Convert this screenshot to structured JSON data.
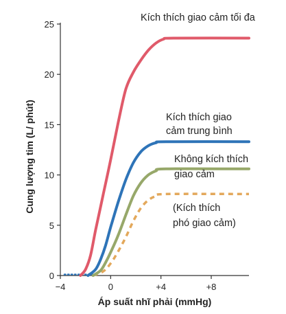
{
  "chart_data": {
    "type": "line",
    "title": "",
    "xlabel": "Áp suất nhĩ phải (mmHg)",
    "ylabel": "Cung lượng tim (L/ phút)",
    "xlim": [
      -4,
      11
    ],
    "ylim": [
      0,
      25
    ],
    "x_ticks": [
      -4,
      0,
      4,
      8
    ],
    "x_tick_labels": [
      "−4",
      "0",
      "+4",
      "+8"
    ],
    "y_ticks": [
      0,
      5,
      10,
      15,
      20,
      25
    ],
    "y_tick_labels": [
      "0",
      "5",
      "10",
      "15",
      "20",
      "25"
    ],
    "grid": false,
    "legend": "none",
    "series": [
      {
        "label_lines": [
          "Kích thích giao cảm tối đa"
        ],
        "color": "#e05a6a",
        "style": "solid",
        "points": [
          [
            -2.4,
            0
          ],
          [
            -2,
            0.6
          ],
          [
            -1.6,
            2
          ],
          [
            -1.2,
            4.5
          ],
          [
            -0.6,
            8
          ],
          [
            0,
            11.5
          ],
          [
            0.6,
            15.2
          ],
          [
            1.2,
            18.5
          ],
          [
            1.8,
            20.2
          ],
          [
            2.4,
            21.4
          ],
          [
            3,
            22.4
          ],
          [
            3.6,
            23.1
          ],
          [
            4.2,
            23.5
          ],
          [
            5,
            23.6
          ],
          [
            11,
            23.6
          ]
        ]
      },
      {
        "label_lines": [
          "Kích thích giao",
          "cảm trung bình"
        ],
        "color": "#2e74b8",
        "style": "solid",
        "points": [
          [
            -1.8,
            0
          ],
          [
            -1.2,
            0.6
          ],
          [
            -0.8,
            1.6
          ],
          [
            -0.4,
            3
          ],
          [
            0,
            4.8
          ],
          [
            0.6,
            7.3
          ],
          [
            1.2,
            9.5
          ],
          [
            1.8,
            11.2
          ],
          [
            2.4,
            12.3
          ],
          [
            3,
            12.9
          ],
          [
            3.6,
            13.2
          ],
          [
            4.4,
            13.3
          ],
          [
            11,
            13.3
          ]
        ]
      },
      {
        "label_lines": [
          "Không kích thích",
          "giao cảm"
        ],
        "color": "#97a86a",
        "style": "solid",
        "points": [
          [
            -1.4,
            0
          ],
          [
            -0.8,
            0.5
          ],
          [
            -0.4,
            1.3
          ],
          [
            0,
            2.3
          ],
          [
            0.6,
            4
          ],
          [
            1.2,
            6
          ],
          [
            1.8,
            7.9
          ],
          [
            2.4,
            9.2
          ],
          [
            3,
            10
          ],
          [
            3.6,
            10.4
          ],
          [
            4.4,
            10.6
          ],
          [
            11,
            10.6
          ]
        ]
      },
      {
        "label_lines": [
          "(Kích thích",
          "phó giao cảm)"
        ],
        "color": "#e3a85b",
        "style": "dashed",
        "points": [
          [
            -1.4,
            0
          ],
          [
            -0.6,
            0.4
          ],
          [
            0,
            1.2
          ],
          [
            0.6,
            2.4
          ],
          [
            1.2,
            3.8
          ],
          [
            1.8,
            5.4
          ],
          [
            2.4,
            6.7
          ],
          [
            3,
            7.5
          ],
          [
            3.6,
            7.9
          ],
          [
            4.4,
            8.1
          ],
          [
            11,
            8.1
          ]
        ]
      }
    ],
    "baseline_dotted": {
      "color": "#2e74b8",
      "x": [
        -4,
        -1.4
      ]
    }
  }
}
